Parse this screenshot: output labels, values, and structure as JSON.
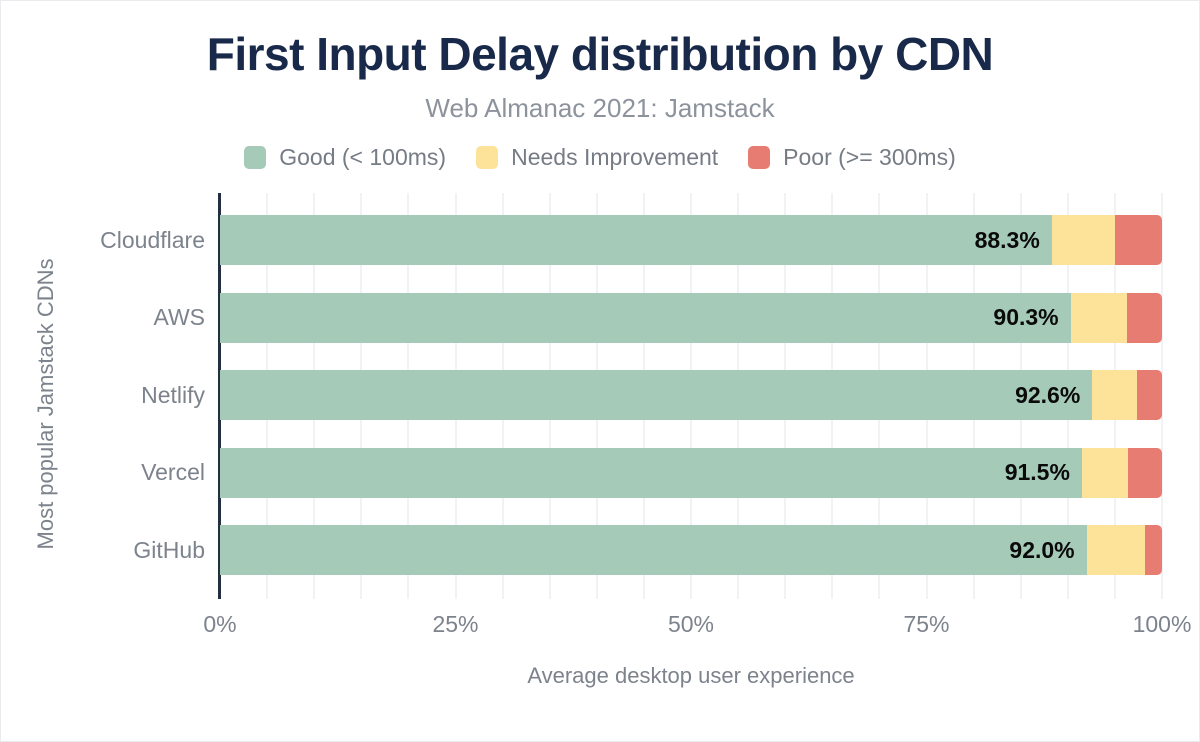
{
  "chart": {
    "title": "First Input Delay distribution by CDN",
    "subtitle": "Web Almanac 2021: Jamstack",
    "x_axis_title": "Average desktop user experience",
    "y_axis_title": "Most popular Jamstack CDNs"
  },
  "chart_data": {
    "type": "bar",
    "orientation": "horizontal",
    "stacked": true,
    "title": "First Input Delay distribution by CDN",
    "subtitle": "Web Almanac 2021: Jamstack",
    "xlabel": "Average desktop user experience",
    "ylabel": "Most popular Jamstack CDNs",
    "xlim": [
      0,
      100
    ],
    "x_tick_labels": [
      "0%",
      "25%",
      "50%",
      "75%",
      "100%"
    ],
    "x_tick_values": [
      0,
      25,
      50,
      75,
      100
    ],
    "grid": "vertical minor gridlines every 5%",
    "legend_position": "top",
    "categories": [
      "Cloudflare",
      "AWS",
      "Netlify",
      "Vercel",
      "GitHub"
    ],
    "series": [
      {
        "name": "Good (< 100ms)",
        "color": "#a6cab8",
        "values": [
          88.3,
          90.3,
          92.6,
          91.5,
          92.0
        ]
      },
      {
        "name": "Needs Improvement",
        "color": "#fde39a",
        "values": [
          6.7,
          6.0,
          4.8,
          4.9,
          6.2
        ]
      },
      {
        "name": "Poor (>= 300ms)",
        "color": "#e77c72",
        "values": [
          5.0,
          3.7,
          2.6,
          3.6,
          1.8
        ]
      }
    ],
    "bar_value_labels": [
      "88.3%",
      "90.3%",
      "92.6%",
      "91.5%",
      "92.0%"
    ]
  },
  "colors": {
    "title": "#19294a",
    "subtitle": "#8d939c",
    "axis_text": "#7d838c",
    "legend_text": "#767c85",
    "axis_line": "#222f3e",
    "gridline": "#f1f2f4",
    "good": "#a6cab8",
    "needs_improvement": "#fde39a",
    "poor": "#e77c72",
    "bar_value_text": "#0a0a0a",
    "background": "#ffffff"
  }
}
